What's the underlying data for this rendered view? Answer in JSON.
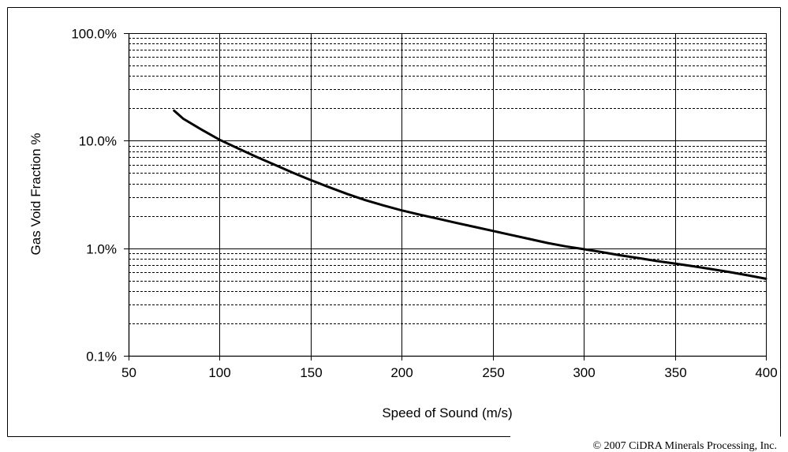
{
  "chart_data": {
    "type": "line",
    "title": "",
    "xlabel": "Speed of Sound (m/s)",
    "ylabel": "Gas Void Fraction %",
    "xlim": [
      50,
      400
    ],
    "ylim": [
      0.1,
      100
    ],
    "yscale": "log",
    "x_ticks": [
      50,
      100,
      150,
      200,
      250,
      300,
      350,
      400
    ],
    "x_tick_labels": [
      "50",
      "100",
      "150",
      "200",
      "250",
      "300",
      "350",
      "400"
    ],
    "y_ticks": [
      0.1,
      1,
      10,
      100
    ],
    "y_tick_labels": [
      "0.1%",
      "1.0%",
      "10.0%",
      "100.0%"
    ],
    "grid": true,
    "legend": "none",
    "line_color": "#000000",
    "series": [
      {
        "x": [
          75,
          80,
          90,
          100,
          110,
          120,
          130,
          140,
          150,
          160,
          170,
          180,
          190,
          200,
          210,
          220,
          230,
          240,
          250,
          260,
          270,
          280,
          290,
          300,
          310,
          320,
          330,
          340,
          350,
          360,
          370,
          380,
          390,
          400
        ],
        "y": [
          19.0,
          16.0,
          12.7,
          10.2,
          8.5,
          7.1,
          6.0,
          5.05,
          4.3,
          3.7,
          3.2,
          2.8,
          2.5,
          2.25,
          2.05,
          1.88,
          1.72,
          1.58,
          1.45,
          1.33,
          1.22,
          1.12,
          1.04,
          0.98,
          0.92,
          0.86,
          0.81,
          0.76,
          0.72,
          0.68,
          0.64,
          0.6,
          0.56,
          0.52
        ]
      }
    ]
  },
  "footer": {
    "copyright": "© 2007 CiDRA Minerals Processing, Inc."
  }
}
